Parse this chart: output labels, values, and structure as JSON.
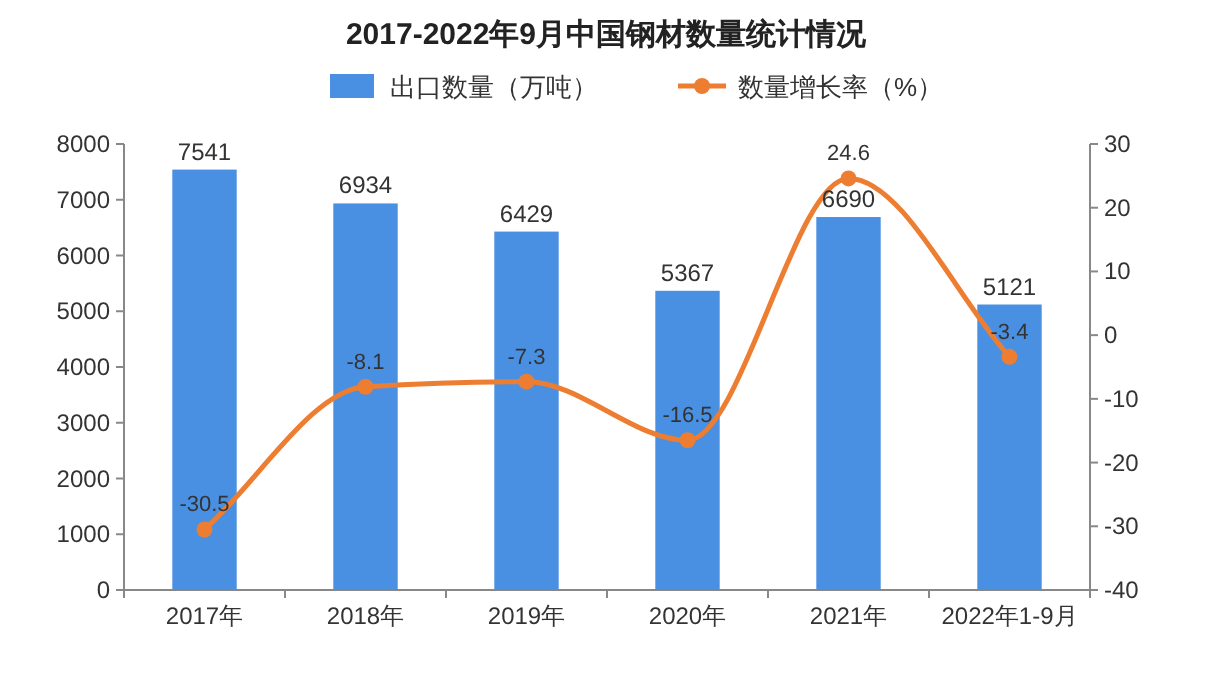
{
  "chart_data": {
    "type": "bar",
    "title": "2017-2022年9月中国钢材数量统计情况",
    "categories": [
      "2017年",
      "2018年",
      "2019年",
      "2020年",
      "2021年",
      "2022年1-9月"
    ],
    "series": [
      {
        "name": "出口数量（万吨）",
        "color": "#4a90e2",
        "values": [
          7541,
          6934,
          6429,
          5367,
          6690,
          5121
        ]
      },
      {
        "name": "数量增长率（%）",
        "type": "line",
        "axis": "y2",
        "marker": "circle",
        "color": "#ed7d31",
        "values": [
          -30.5,
          -8.1,
          -7.3,
          -16.5,
          24.6,
          -3.4
        ]
      }
    ],
    "ylim": [
      0,
      8000
    ],
    "yticks": [
      0,
      1000,
      2000,
      3000,
      4000,
      5000,
      6000,
      7000,
      8000
    ],
    "y2lim": [
      -40,
      30
    ],
    "y2ticks": [
      -40,
      -30,
      -20,
      -10,
      0,
      10,
      20,
      30
    ],
    "data_labels": true,
    "legend": "top"
  }
}
